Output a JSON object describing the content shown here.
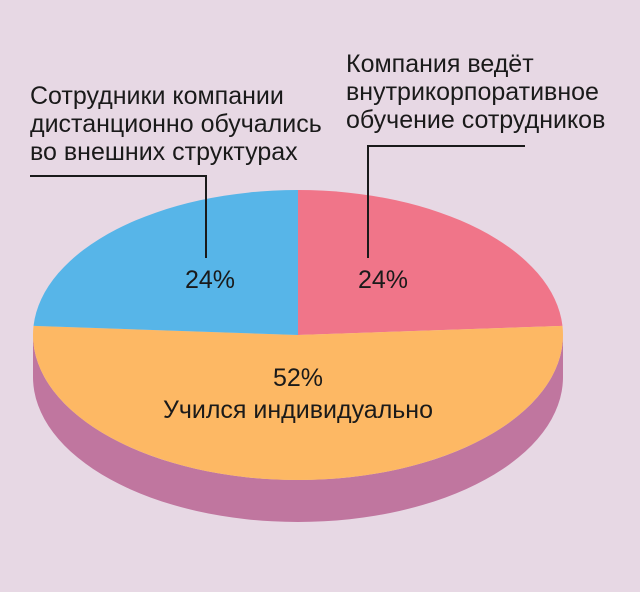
{
  "chart_data": {
    "type": "pie",
    "categories": [
      "Компания ведёт\nвнутрикорпоративное\nобучение сотрудников",
      "Учился индивидуально",
      "Сотрудники компании\nдистанционно обучались\nво внешних структурах"
    ],
    "values": [
      24,
      52,
      24
    ],
    "value_labels": [
      "24%",
      "52%",
      "24%"
    ],
    "colors": [
      "#f07589",
      "#fdb864",
      "#57b5e8"
    ],
    "side_color": "#c0769f"
  }
}
